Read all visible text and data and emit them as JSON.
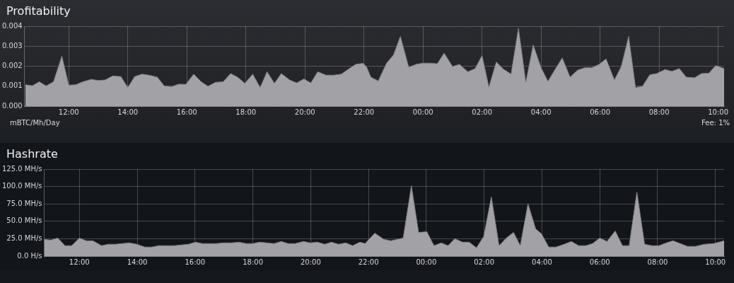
{
  "chart_data": [
    {
      "type": "area",
      "title": "Profitability",
      "ylabel": "mBTC/Mh/Day",
      "annotations": [
        "Fee: 1%"
      ],
      "color": "#a2a2a6",
      "grid": true,
      "x": [
        "2000-01-01T10:32",
        "2000-01-01T10:46",
        "2000-01-01T11:00",
        "2000-01-01T11:14",
        "2000-01-01T11:29",
        "2000-01-01T11:46",
        "2000-01-01T12:00",
        "2000-01-01T12:14",
        "2000-01-01T12:29",
        "2000-01-01T12:46",
        "2000-01-01T13:00",
        "2000-01-01T13:14",
        "2000-01-01T13:29",
        "2000-01-01T13:46",
        "2000-01-01T14:00",
        "2000-01-01T14:14",
        "2000-01-01T14:29",
        "2000-01-01T14:43",
        "2000-01-01T15:00",
        "2000-01-01T15:14",
        "2000-01-01T15:29",
        "2000-01-01T15:43",
        "2000-01-01T15:58",
        "2000-01-01T16:14",
        "2000-01-01T16:29",
        "2000-01-01T16:43",
        "2000-01-01T16:58",
        "2000-01-01T17:14",
        "2000-01-01T17:29",
        "2000-01-01T17:43",
        "2000-01-01T17:58",
        "2000-01-01T18:14",
        "2000-01-01T18:29",
        "2000-01-01T18:43",
        "2000-01-01T18:58",
        "2000-01-01T19:12",
        "2000-01-01T19:29",
        "2000-01-01T19:43",
        "2000-01-01T19:58",
        "2000-01-01T20:12",
        "2000-01-01T20:26",
        "2000-01-01T20:43",
        "2000-01-01T20:58",
        "2000-01-01T21:14",
        "2000-01-01T21:29",
        "2000-01-01T21:43",
        "2000-01-01T21:58",
        "2000-01-01T22:05",
        "2000-01-01T22:14",
        "2000-01-01T22:29",
        "2000-01-01T22:46",
        "2000-01-01T23:00",
        "2000-01-01T23:14",
        "2000-01-01T23:31",
        "2000-01-01T23:46",
        "2000-01-02T00:00",
        "2000-01-02T00:14",
        "2000-01-02T00:29",
        "2000-01-02T00:43",
        "2000-01-02T01:00",
        "2000-01-02T01:14",
        "2000-01-02T01:31",
        "2000-01-02T01:46",
        "2000-01-02T02:00",
        "2000-01-02T02:14",
        "2000-01-02T02:29",
        "2000-01-02T02:43",
        "2000-01-02T02:59",
        "2000-01-02T03:14",
        "2000-01-02T03:29",
        "2000-01-02T03:44",
        "2000-01-02T04:00",
        "2000-01-02T04:14",
        "2000-01-02T04:29",
        "2000-01-02T04:43",
        "2000-01-02T04:59",
        "2000-01-02T05:14",
        "2000-01-02T05:29",
        "2000-01-02T05:43",
        "2000-01-02T05:58",
        "2000-01-02T06:12",
        "2000-01-02T06:29",
        "2000-01-02T06:43",
        "2000-01-02T06:58",
        "2000-01-02T07:12",
        "2000-01-02T07:26",
        "2000-01-02T07:41",
        "2000-01-02T07:55",
        "2000-01-02T08:12",
        "2000-01-02T08:26",
        "2000-01-02T08:41",
        "2000-01-02T08:55",
        "2000-01-02T09:12",
        "2000-01-02T09:26",
        "2000-01-02T09:41",
        "2000-01-02T09:55",
        "2000-01-02T10:12"
      ],
      "values": [
        0.00107,
        0.00102,
        0.00122,
        0.00101,
        0.00122,
        0.0025,
        0.00105,
        0.00107,
        0.00122,
        0.00134,
        0.00128,
        0.00131,
        0.00151,
        0.00148,
        0.00093,
        0.00148,
        0.0016,
        0.00155,
        0.00145,
        0.00101,
        0.00097,
        0.0011,
        0.00109,
        0.0016,
        0.00122,
        0.00099,
        0.00119,
        0.00122,
        0.00163,
        0.00145,
        0.00114,
        0.0016,
        0.00093,
        0.00172,
        0.00114,
        0.00163,
        0.00131,
        0.00116,
        0.00136,
        0.00116,
        0.00172,
        0.00155,
        0.00155,
        0.0016,
        0.00186,
        0.00209,
        0.00214,
        0.00198,
        0.00145,
        0.00126,
        0.00215,
        0.00256,
        0.00349,
        0.00195,
        0.00209,
        0.00215,
        0.00215,
        0.00212,
        0.00265,
        0.00198,
        0.00209,
        0.00172,
        0.00188,
        0.00253,
        0.00095,
        0.00221,
        0.00186,
        0.0016,
        0.0039,
        0.00119,
        0.00306,
        0.00192,
        0.00124,
        0.00186,
        0.00241,
        0.00145,
        0.0018,
        0.00192,
        0.00192,
        0.00209,
        0.00236,
        0.00131,
        0.00198,
        0.00349,
        0.00093,
        0.00099,
        0.00157,
        0.00163,
        0.00183,
        0.00174,
        0.00188,
        0.00145,
        0.00142,
        0.00163,
        0.00165,
        0.00203,
        0.00188
      ],
      "xlim": [
        "2000-01-01T10:30",
        "2000-01-02T10:12"
      ],
      "xticks": [
        {
          "value": "2000-01-01T12:00",
          "label": "12:00"
        },
        {
          "value": "2000-01-01T14:00",
          "label": "14:00"
        },
        {
          "value": "2000-01-01T16:00",
          "label": "16:00"
        },
        {
          "value": "2000-01-01T18:00",
          "label": "18:00"
        },
        {
          "value": "2000-01-01T20:00",
          "label": "20:00"
        },
        {
          "value": "2000-01-01T22:00",
          "label": "22:00"
        },
        {
          "value": "2000-01-02T00:00",
          "label": "00:00"
        },
        {
          "value": "2000-01-02T02:00",
          "label": "02:00"
        },
        {
          "value": "2000-01-02T04:00",
          "label": "04:00"
        },
        {
          "value": "2000-01-02T06:00",
          "label": "06:00"
        },
        {
          "value": "2000-01-02T08:00",
          "label": "08:00"
        },
        {
          "value": "2000-01-02T10:00",
          "label": "10:00"
        }
      ],
      "ylim": [
        0,
        0.004
      ],
      "yticks": [
        {
          "value": 0,
          "label": "0.000"
        },
        0.001,
        0.002,
        0.003,
        0.004
      ]
    },
    {
      "type": "area",
      "title": "Hashrate",
      "color": "#a2a2a6",
      "grid": true,
      "x": [
        "2000-01-01T10:47",
        "2000-01-01T11:01",
        "2000-01-01T11:15",
        "2000-01-01T11:30",
        "2000-01-01T11:44",
        "2000-01-01T12:00",
        "2000-01-01T12:14",
        "2000-01-01T12:28",
        "2000-01-01T12:46",
        "2000-01-01T13:00",
        "2000-01-01T13:14",
        "2000-01-01T13:29",
        "2000-01-01T13:44",
        "2000-01-01T13:59",
        "2000-01-01T14:16",
        "2000-01-01T14:30",
        "2000-01-01T14:45",
        "2000-01-01T15:02",
        "2000-01-01T15:17",
        "2000-01-01T15:31",
        "2000-01-01T15:46",
        "2000-01-01T16:01",
        "2000-01-01T16:15",
        "2000-01-01T16:30",
        "2000-01-01T16:44",
        "2000-01-01T16:59",
        "2000-01-01T17:16",
        "2000-01-01T17:31",
        "2000-01-01T17:46",
        "2000-01-01T18:00",
        "2000-01-01T18:14",
        "2000-01-01T18:29",
        "2000-01-01T18:44",
        "2000-01-01T18:59",
        "2000-01-01T19:13",
        "2000-01-01T19:28",
        "2000-01-01T19:45",
        "2000-01-01T19:59",
        "2000-01-01T20:14",
        "2000-01-01T20:29",
        "2000-01-01T20:43",
        "2000-01-01T20:58",
        "2000-01-01T21:13",
        "2000-01-01T21:27",
        "2000-01-01T21:42",
        "2000-01-01T21:53",
        "2000-01-01T22:13",
        "2000-01-01T22:32",
        "2000-01-01T22:47",
        "2000-01-01T23:12",
        "2000-01-01T23:29",
        "2000-01-01T23:44",
        "2000-01-02T00:01",
        "2000-01-02T00:16",
        "2000-01-02T00:31",
        "2000-01-02T00:45",
        "2000-01-02T00:59",
        "2000-01-02T01:15",
        "2000-01-02T01:29",
        "2000-01-02T01:44",
        "2000-01-02T01:59",
        "2000-01-02T02:15",
        "2000-01-02T02:31",
        "2000-01-02T02:46",
        "2000-01-02T03:01",
        "2000-01-02T03:15",
        "2000-01-02T03:31",
        "2000-01-02T03:47",
        "2000-01-02T03:59",
        "2000-01-02T04:14",
        "2000-01-02T04:29",
        "2000-01-02T04:46",
        "2000-01-02T05:01",
        "2000-01-02T05:16",
        "2000-01-02T05:31",
        "2000-01-02T05:45",
        "2000-01-02T06:00",
        "2000-01-02T06:15",
        "2000-01-02T06:32",
        "2000-01-02T06:47",
        "2000-01-02T07:01",
        "2000-01-02T07:17",
        "2000-01-02T07:33",
        "2000-01-02T07:48",
        "2000-01-02T08:03",
        "2000-01-02T08:18",
        "2000-01-02T08:32",
        "2000-01-02T08:47",
        "2000-01-02T09:02",
        "2000-01-02T09:19",
        "2000-01-02T09:37",
        "2000-01-02T09:56",
        "2000-01-02T10:18"
      ],
      "values": [
        24,
        23,
        26,
        15,
        15,
        26,
        22,
        22,
        15,
        17,
        17,
        18,
        19,
        17,
        13,
        13,
        15,
        15,
        15,
        16,
        17,
        20,
        18,
        18,
        18,
        19,
        19,
        20,
        18,
        18,
        20,
        19,
        18,
        21,
        18,
        18,
        21,
        19,
        20,
        17,
        20,
        17,
        19,
        15,
        20,
        18,
        33,
        24,
        22,
        26,
        101,
        34,
        35,
        15,
        19,
        15,
        25,
        20,
        20,
        12,
        28,
        85,
        15,
        26,
        34,
        15,
        75,
        39,
        32,
        13,
        13,
        17,
        21,
        15,
        15,
        18,
        26,
        21,
        36,
        15,
        15,
        92,
        17,
        15,
        15,
        19,
        22,
        18,
        14,
        14,
        17,
        18,
        22
      ],
      "xlim": [
        "2000-01-01T10:47",
        "2000-01-02T10:18"
      ],
      "xticks": [
        {
          "value": "2000-01-01T12:00",
          "label": "12:00"
        },
        {
          "value": "2000-01-01T14:00",
          "label": "14:00"
        },
        {
          "value": "2000-01-01T16:00",
          "label": "16:00"
        },
        {
          "value": "2000-01-01T18:00",
          "label": "18:00"
        },
        {
          "value": "2000-01-01T20:00",
          "label": "20:00"
        },
        {
          "value": "2000-01-01T22:00",
          "label": "22:00"
        },
        {
          "value": "2000-01-02T00:00",
          "label": "00:00"
        },
        {
          "value": "2000-01-02T02:00",
          "label": "02:00"
        },
        {
          "value": "2000-01-02T04:00",
          "label": "04:00"
        },
        {
          "value": "2000-01-02T06:00",
          "label": "06:00"
        },
        {
          "value": "2000-01-02T08:00",
          "label": "08:00"
        },
        {
          "value": "2000-01-02T10:00",
          "label": "10:00"
        }
      ],
      "ylim": [
        0,
        125
      ],
      "yticks": [
        {
          "value": 0,
          "label": "0.0 H/s"
        },
        {
          "value": 25,
          "label": "25.0 MH/s"
        },
        {
          "value": 50,
          "label": "50.0 MH/s"
        },
        {
          "value": 75,
          "label": "75.0 MH/s"
        },
        {
          "value": 100,
          "label": "100.0 MH/s"
        },
        {
          "value": 125,
          "label": "125.0 MH/s"
        }
      ]
    }
  ]
}
